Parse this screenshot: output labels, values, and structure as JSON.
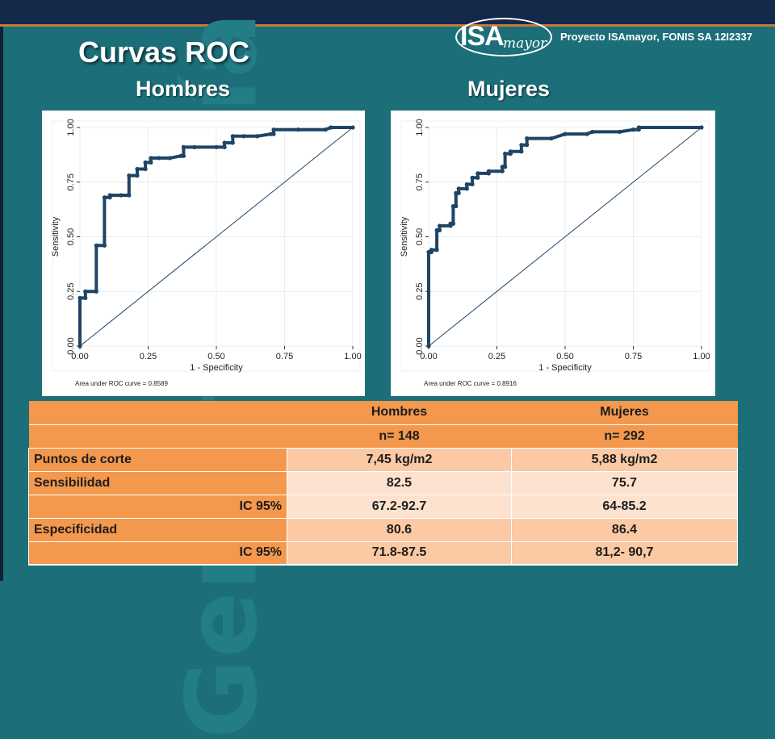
{
  "title": "Curvas ROC",
  "subtitles": {
    "hombres": "Hombres",
    "mujeres": "Mujeres"
  },
  "logo": {
    "brand_main": "ISA",
    "brand_sub": "mayor",
    "project_text": "Proyecto ISAmayor, FONIS SA 12I2337"
  },
  "background_text": "Gerontología",
  "colors": {
    "background": "#1c6f78",
    "table_header": "#f4984d",
    "curve": "#1e4466"
  },
  "chart_data": [
    {
      "type": "line",
      "panel": "Hombres",
      "xlabel": "1 - Specificity",
      "ylabel": "Sensitivity",
      "xlim": [
        0,
        1
      ],
      "ylim": [
        0,
        1
      ],
      "xticks": [
        "0.00",
        "0.25",
        "0.50",
        "0.75",
        "1.00"
      ],
      "yticks": [
        "0.00",
        "0.25",
        "0.50",
        "0.75",
        "1.00"
      ],
      "grid": true,
      "footnote": "Area under ROC curve = 0.8589",
      "roc_points": [
        [
          0,
          0
        ],
        [
          0,
          0.22
        ],
        [
          0.02,
          0.22
        ],
        [
          0.02,
          0.25
        ],
        [
          0.06,
          0.25
        ],
        [
          0.06,
          0.46
        ],
        [
          0.09,
          0.46
        ],
        [
          0.09,
          0.68
        ],
        [
          0.11,
          0.68
        ],
        [
          0.11,
          0.69
        ],
        [
          0.15,
          0.69
        ],
        [
          0.18,
          0.69
        ],
        [
          0.18,
          0.78
        ],
        [
          0.21,
          0.78
        ],
        [
          0.21,
          0.81
        ],
        [
          0.24,
          0.81
        ],
        [
          0.24,
          0.84
        ],
        [
          0.26,
          0.84
        ],
        [
          0.26,
          0.86
        ],
        [
          0.29,
          0.86
        ],
        [
          0.33,
          0.86
        ],
        [
          0.37,
          0.87
        ],
        [
          0.38,
          0.87
        ],
        [
          0.38,
          0.91
        ],
        [
          0.42,
          0.91
        ],
        [
          0.5,
          0.91
        ],
        [
          0.53,
          0.91
        ],
        [
          0.53,
          0.93
        ],
        [
          0.56,
          0.93
        ],
        [
          0.56,
          0.96
        ],
        [
          0.6,
          0.96
        ],
        [
          0.65,
          0.96
        ],
        [
          0.7,
          0.97
        ],
        [
          0.71,
          0.97
        ],
        [
          0.71,
          0.99
        ],
        [
          0.8,
          0.99
        ],
        [
          0.9,
          0.99
        ],
        [
          0.92,
          1
        ],
        [
          1,
          1
        ]
      ],
      "reference_line": [
        [
          0,
          0
        ],
        [
          1,
          1
        ]
      ]
    },
    {
      "type": "line",
      "panel": "Mujeres",
      "xlabel": "1 - Specificity",
      "ylabel": "Sensitivity",
      "xlim": [
        0,
        1
      ],
      "ylim": [
        0,
        1
      ],
      "xticks": [
        "0.00",
        "0.25",
        "0.50",
        "0.75",
        "1.00"
      ],
      "yticks": [
        "0.00",
        "0.25",
        "0.50",
        "0.75",
        "1.00"
      ],
      "grid": true,
      "footnote": "Area under ROC curve = 0.8916",
      "roc_points": [
        [
          0,
          0
        ],
        [
          0,
          0.43
        ],
        [
          0.01,
          0.43
        ],
        [
          0.01,
          0.44
        ],
        [
          0.03,
          0.44
        ],
        [
          0.03,
          0.53
        ],
        [
          0.04,
          0.53
        ],
        [
          0.04,
          0.55
        ],
        [
          0.08,
          0.55
        ],
        [
          0.08,
          0.56
        ],
        [
          0.09,
          0.56
        ],
        [
          0.09,
          0.64
        ],
        [
          0.1,
          0.64
        ],
        [
          0.1,
          0.7
        ],
        [
          0.11,
          0.7
        ],
        [
          0.11,
          0.72
        ],
        [
          0.14,
          0.72
        ],
        [
          0.14,
          0.74
        ],
        [
          0.16,
          0.74
        ],
        [
          0.16,
          0.77
        ],
        [
          0.18,
          0.77
        ],
        [
          0.18,
          0.79
        ],
        [
          0.22,
          0.79
        ],
        [
          0.22,
          0.8
        ],
        [
          0.27,
          0.8
        ],
        [
          0.27,
          0.82
        ],
        [
          0.28,
          0.82
        ],
        [
          0.28,
          0.88
        ],
        [
          0.3,
          0.88
        ],
        [
          0.3,
          0.89
        ],
        [
          0.34,
          0.89
        ],
        [
          0.34,
          0.92
        ],
        [
          0.36,
          0.92
        ],
        [
          0.36,
          0.95
        ],
        [
          0.45,
          0.95
        ],
        [
          0.5,
          0.97
        ],
        [
          0.58,
          0.97
        ],
        [
          0.6,
          0.98
        ],
        [
          0.7,
          0.98
        ],
        [
          0.75,
          0.99
        ],
        [
          0.77,
          0.99
        ],
        [
          0.77,
          1
        ],
        [
          1,
          1
        ]
      ],
      "reference_line": [
        [
          0,
          0
        ],
        [
          1,
          1
        ]
      ]
    }
  ],
  "table": {
    "headers": [
      [
        "",
        "Hombres",
        "Mujeres"
      ],
      [
        "",
        "n= 148",
        "n= 292"
      ]
    ],
    "rows": [
      {
        "label": "Puntos de corte",
        "hombres": "7,45 kg/m2",
        "mujeres": "5,88 kg/m2"
      },
      {
        "label": "Sensibilidad",
        "hombres": "82.5",
        "mujeres": "75.7"
      },
      {
        "label": "IC 95%",
        "hombres": "67.2-92.7",
        "mujeres": "64-85.2"
      },
      {
        "label": "Especificidad",
        "hombres": "80.6",
        "mujeres": "86.4"
      },
      {
        "label": "IC 95%",
        "hombres": "71.8-87.5",
        "mujeres": "81,2- 90,7"
      }
    ]
  }
}
